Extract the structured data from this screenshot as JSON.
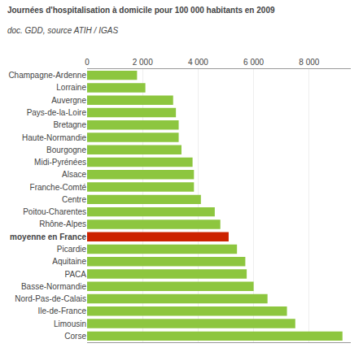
{
  "chart_data": {
    "type": "bar",
    "orientation": "horizontal",
    "title": "Journées d'hospitalisation à domicile pour 100 000 habitants en 2009",
    "subtitle": "doc. GDD, source ATIH / IGAS",
    "categories": [
      "Champagne-Ardenne",
      "Lorraine",
      "Auvergne",
      "Pays-de-la-Loire",
      "Bretagne",
      "Haute-Normandie",
      "Bourgogne",
      "Midi-Pyrénées",
      "Alsace",
      "Franche-Comté",
      "Centre",
      "Poitou-Charentes",
      "Rhône-Alpes",
      "moyenne en France",
      "Picardie",
      "Aquitaine",
      "PACA",
      "Basse-Normandie",
      "Nord-Pas-de-Calais",
      "Ile-de-France",
      "Limousin",
      "Corse"
    ],
    "values": [
      1800,
      2100,
      3100,
      3200,
      3300,
      3300,
      3400,
      3800,
      3850,
      3850,
      4100,
      4600,
      4800,
      5100,
      5400,
      5700,
      5750,
      6000,
      6500,
      7200,
      7500,
      9200
    ],
    "colors": [
      "#8dc63f",
      "#8dc63f",
      "#8dc63f",
      "#8dc63f",
      "#8dc63f",
      "#8dc63f",
      "#8dc63f",
      "#8dc63f",
      "#8dc63f",
      "#8dc63f",
      "#8dc63f",
      "#8dc63f",
      "#8dc63f",
      "#cc2200",
      "#8dc63f",
      "#8dc63f",
      "#8dc63f",
      "#8dc63f",
      "#8dc63f",
      "#8dc63f",
      "#8dc63f",
      "#8dc63f"
    ],
    "xlim": [
      0,
      9500
    ],
    "xticks": [
      0,
      {
        "value": 2000,
        "label": "2 000"
      },
      {
        "value": 4000,
        "label": "4 000"
      },
      {
        "value": 6000,
        "label": "6 000"
      },
      {
        "value": 8000,
        "label": "8 000"
      }
    ],
    "grid": true
  }
}
